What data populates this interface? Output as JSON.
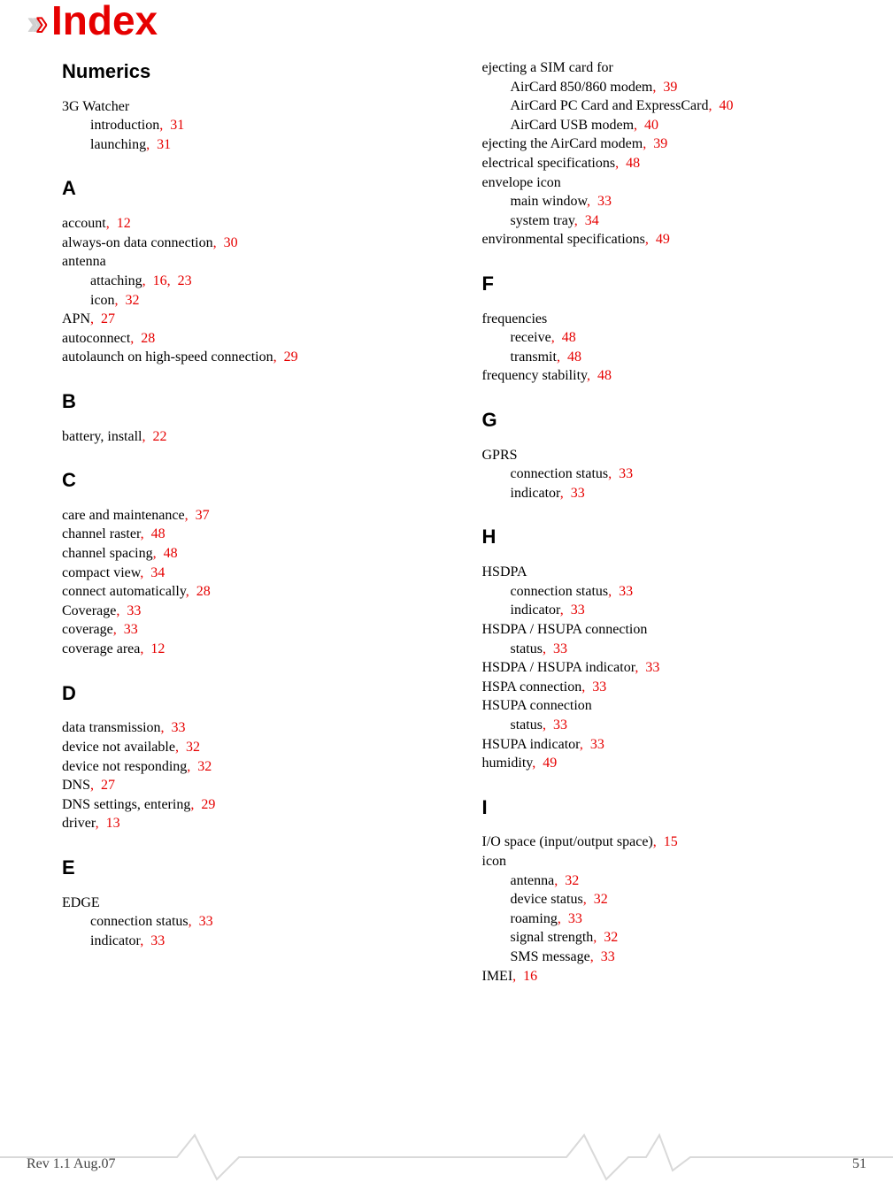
{
  "title": "Index",
  "footer": {
    "rev": "Rev 1.1  Aug.07",
    "page": "51"
  },
  "colors": {
    "accent": "#e60000",
    "text": "#000000",
    "chev_gray": "#d0d0d0"
  },
  "left": [
    {
      "type": "section",
      "label": "Numerics"
    },
    {
      "type": "entry",
      "text": "3G Watcher"
    },
    {
      "type": "sub",
      "text": "introduction",
      "pages": [
        "31"
      ]
    },
    {
      "type": "sub",
      "text": "launching",
      "pages": [
        "31"
      ]
    },
    {
      "type": "section",
      "label": "A"
    },
    {
      "type": "entry",
      "text": "account",
      "pages": [
        "12"
      ]
    },
    {
      "type": "entry",
      "text": "always-on data connection",
      "pages": [
        "30"
      ]
    },
    {
      "type": "entry",
      "text": "antenna"
    },
    {
      "type": "sub",
      "text": "attaching",
      "pages": [
        "16",
        "23"
      ]
    },
    {
      "type": "sub",
      "text": "icon",
      "pages": [
        "32"
      ]
    },
    {
      "type": "entry",
      "text": "APN",
      "pages": [
        "27"
      ]
    },
    {
      "type": "entry",
      "text": "autoconnect",
      "pages": [
        "28"
      ]
    },
    {
      "type": "entry",
      "text": "autolaunch on high-speed connection",
      "pages": [
        "29"
      ]
    },
    {
      "type": "section",
      "label": "B"
    },
    {
      "type": "entry",
      "text": "battery, install",
      "pages": [
        "22"
      ]
    },
    {
      "type": "section",
      "label": "C"
    },
    {
      "type": "entry",
      "text": "care and maintenance",
      "pages": [
        "37"
      ]
    },
    {
      "type": "entry",
      "text": "channel raster",
      "pages": [
        "48"
      ]
    },
    {
      "type": "entry",
      "text": "channel spacing",
      "pages": [
        "48"
      ]
    },
    {
      "type": "entry",
      "text": "compact view",
      "pages": [
        "34"
      ]
    },
    {
      "type": "entry",
      "text": "connect automatically",
      "pages": [
        "28"
      ]
    },
    {
      "type": "entry",
      "text": "Coverage",
      "pages": [
        "33"
      ]
    },
    {
      "type": "entry",
      "text": "coverage",
      "pages": [
        "33"
      ]
    },
    {
      "type": "entry",
      "text": "coverage area",
      "pages": [
        "12"
      ]
    },
    {
      "type": "section",
      "label": "D"
    },
    {
      "type": "entry",
      "text": "data transmission",
      "pages": [
        "33"
      ]
    },
    {
      "type": "entry",
      "text": "device not available",
      "pages": [
        "32"
      ]
    },
    {
      "type": "entry",
      "text": "device not responding",
      "pages": [
        "32"
      ]
    },
    {
      "type": "entry",
      "text": "DNS",
      "pages": [
        "27"
      ]
    },
    {
      "type": "entry",
      "text": "DNS settings, entering",
      "pages": [
        "29"
      ]
    },
    {
      "type": "entry",
      "text": "driver",
      "pages": [
        "13"
      ]
    },
    {
      "type": "section",
      "label": "E"
    },
    {
      "type": "entry",
      "text": "EDGE"
    },
    {
      "type": "sub",
      "text": "connection status",
      "pages": [
        "33"
      ]
    },
    {
      "type": "sub",
      "text": "indicator",
      "pages": [
        "33"
      ]
    }
  ],
  "right": [
    {
      "type": "entry",
      "text": "ejecting a SIM card for"
    },
    {
      "type": "sub",
      "text": "AirCard 850/860 modem",
      "pages": [
        "39"
      ]
    },
    {
      "type": "sub",
      "text": "AirCard PC Card and ExpressCard",
      "pages": [
        "40"
      ]
    },
    {
      "type": "sub",
      "text": "AirCard USB modem",
      "pages": [
        "40"
      ]
    },
    {
      "type": "entry",
      "text": "ejecting the AirCard modem",
      "pages": [
        "39"
      ]
    },
    {
      "type": "entry",
      "text": "electrical specifications",
      "pages": [
        "48"
      ]
    },
    {
      "type": "entry",
      "text": "envelope icon"
    },
    {
      "type": "sub",
      "text": "main window",
      "pages": [
        "33"
      ]
    },
    {
      "type": "sub",
      "text": "system tray",
      "pages": [
        "34"
      ]
    },
    {
      "type": "entry",
      "text": "environmental specifications",
      "pages": [
        "49"
      ]
    },
    {
      "type": "section",
      "label": "F"
    },
    {
      "type": "entry",
      "text": "frequencies"
    },
    {
      "type": "sub",
      "text": "receive",
      "pages": [
        "48"
      ]
    },
    {
      "type": "sub",
      "text": "transmit",
      "pages": [
        "48"
      ]
    },
    {
      "type": "entry",
      "text": "frequency stability",
      "pages": [
        "48"
      ]
    },
    {
      "type": "section",
      "label": "G"
    },
    {
      "type": "entry",
      "text": "GPRS"
    },
    {
      "type": "sub",
      "text": "connection status",
      "pages": [
        "33"
      ]
    },
    {
      "type": "sub",
      "text": "indicator",
      "pages": [
        "33"
      ]
    },
    {
      "type": "section",
      "label": "H"
    },
    {
      "type": "entry",
      "text": "HSDPA"
    },
    {
      "type": "sub",
      "text": "connection status",
      "pages": [
        "33"
      ]
    },
    {
      "type": "sub",
      "text": "indicator",
      "pages": [
        "33"
      ]
    },
    {
      "type": "entry",
      "text": "HSDPA / HSUPA connection"
    },
    {
      "type": "sub",
      "text": "status",
      "pages": [
        "33"
      ]
    },
    {
      "type": "entry",
      "text": "HSDPA / HSUPA indicator",
      "pages": [
        "33"
      ]
    },
    {
      "type": "entry",
      "text": "HSPA connection",
      "pages": [
        "33"
      ]
    },
    {
      "type": "entry",
      "text": "HSUPA connection"
    },
    {
      "type": "sub",
      "text": "status",
      "pages": [
        "33"
      ]
    },
    {
      "type": "entry",
      "text": "HSUPA indicator",
      "pages": [
        "33"
      ]
    },
    {
      "type": "entry",
      "text": "humidity",
      "pages": [
        "49"
      ]
    },
    {
      "type": "section",
      "label": "I"
    },
    {
      "type": "entry",
      "text": "I/O space (input/output space)",
      "pages": [
        "15"
      ]
    },
    {
      "type": "entry",
      "text": "icon"
    },
    {
      "type": "sub",
      "text": "antenna",
      "pages": [
        "32"
      ]
    },
    {
      "type": "sub",
      "text": "device status",
      "pages": [
        "32"
      ]
    },
    {
      "type": "sub",
      "text": "roaming",
      "pages": [
        "33"
      ]
    },
    {
      "type": "sub",
      "text": "signal strength",
      "pages": [
        "32"
      ]
    },
    {
      "type": "sub",
      "text": "SMS message",
      "pages": [
        "33"
      ]
    },
    {
      "type": "entry",
      "text": "IMEI",
      "pages": [
        "16"
      ]
    }
  ]
}
